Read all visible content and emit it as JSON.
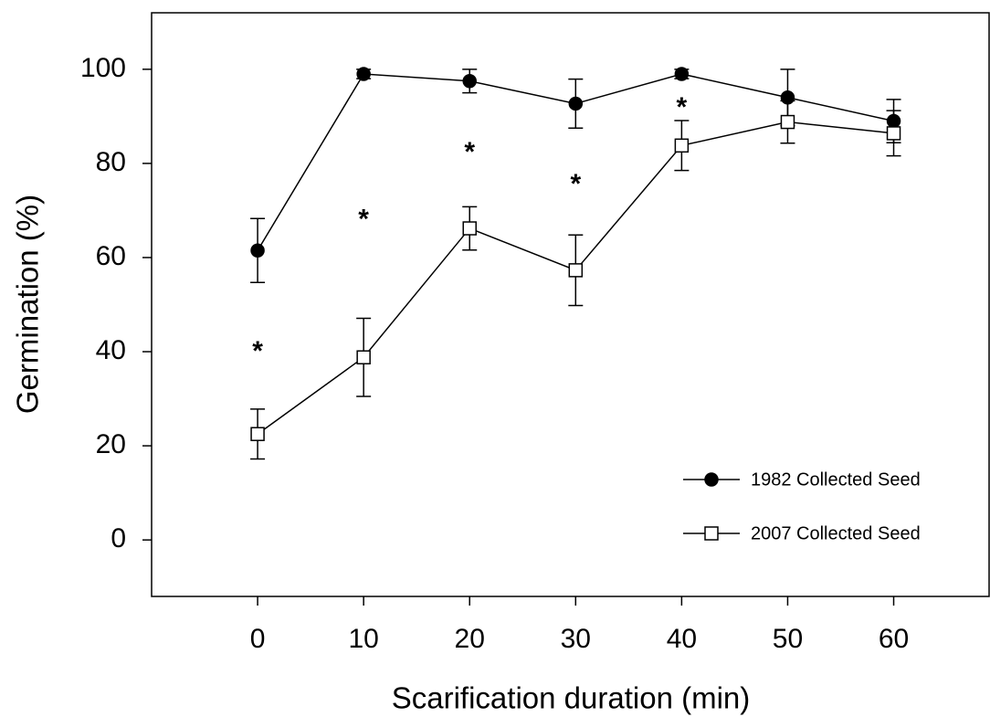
{
  "chart_data": {
    "type": "line",
    "x_label": "Scarification duration (min)",
    "y_label": "Germination (%)",
    "x": [
      0,
      10,
      20,
      30,
      40,
      50,
      60
    ],
    "series": [
      {
        "name": "1982 Collected Seed",
        "color": "#000000",
        "marker": "filled-circle",
        "values": [
          61.5,
          99,
          97.5,
          92.7,
          99,
          94,
          89
        ],
        "errors": [
          6.8,
          1,
          2.5,
          5.2,
          1,
          6,
          4.6
        ]
      },
      {
        "name": "2007 Collected Seed",
        "color": "#000000",
        "marker": "open-square",
        "values": [
          22.5,
          38.8,
          66.2,
          57.3,
          83.8,
          88.8,
          86.4
        ],
        "errors": [
          5.3,
          8.3,
          4.6,
          7.5,
          5.3,
          4.5,
          4.8
        ]
      }
    ],
    "annotations": [
      {
        "text": "*",
        "x": 0,
        "y": 41
      },
      {
        "text": "*",
        "x": 10,
        "y": 69
      },
      {
        "text": "*",
        "x": 20,
        "y": 83.3
      },
      {
        "text": "*",
        "x": 30,
        "y": 76.5
      },
      {
        "text": "*",
        "x": 40,
        "y": 92.8
      }
    ],
    "xlim": [
      -10,
      69
    ],
    "ylim": [
      -12,
      112
    ],
    "xticks": [
      0,
      10,
      20,
      30,
      40,
      50,
      60
    ],
    "yticks": [
      0,
      20,
      40,
      60,
      80,
      100
    ],
    "grid": false,
    "legend": "lower right"
  }
}
